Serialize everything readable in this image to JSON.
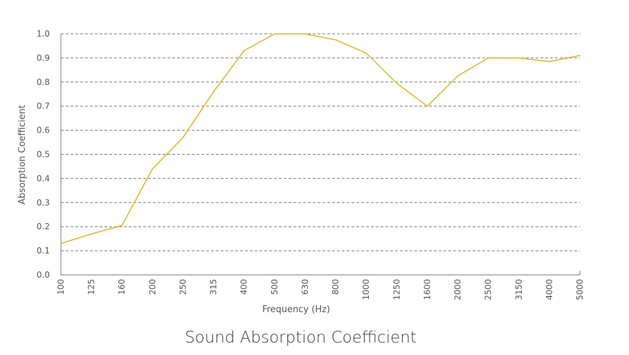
{
  "chart_data": {
    "type": "line",
    "title": "Sound Absorption Coefficient",
    "xlabel": "Frequency (Hz)",
    "ylabel": "Absorption Coefficient",
    "categories": [
      "100",
      "125",
      "160",
      "200",
      "250",
      "315",
      "400",
      "500",
      "630",
      "800",
      "1000",
      "1250",
      "1600",
      "2000",
      "2500",
      "3150",
      "4000",
      "5000"
    ],
    "y_ticks": [
      "0.0",
      "0.1",
      "0.2",
      "0.3",
      "0.4",
      "0.5",
      "0.6",
      "0.7",
      "0.8",
      "0.9",
      "1.0"
    ],
    "ylim": [
      0,
      1.0
    ],
    "grid": true,
    "series": [
      {
        "color": "#e8b01c",
        "values": [
          0.13,
          0.17,
          0.205,
          0.44,
          0.57,
          0.76,
          0.93,
          1.0,
          1.0,
          0.975,
          0.92,
          0.795,
          0.7,
          0.825,
          0.9,
          0.9,
          0.885,
          0.91
        ]
      }
    ]
  },
  "colors": {
    "line": "#e8b01c",
    "grid": "#777777",
    "axis": "#777777",
    "text": "#555555",
    "title": "#3a3a3a"
  }
}
